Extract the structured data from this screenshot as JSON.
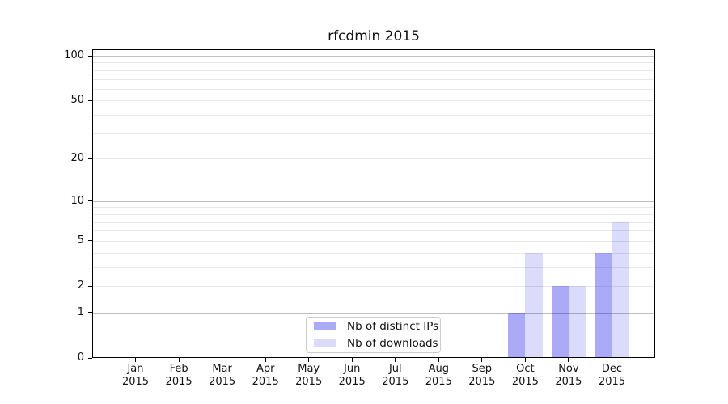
{
  "figure": {
    "background": "#ffffff",
    "text_color": "#111111"
  },
  "chart_data": {
    "type": "bar",
    "title": "rfcdmin 2015",
    "x_categories": [
      "Jan",
      "Feb",
      "Mar",
      "Apr",
      "May",
      "Jun",
      "Jul",
      "Aug",
      "Sep",
      "Oct",
      "Nov",
      "Dec"
    ],
    "x_year": "2015",
    "series": [
      {
        "name": "Nb of distinct IPs",
        "color_hex": "#aaaaf6",
        "overlay_rgba": "rgba(10,10,230,0.345)",
        "values": [
          0,
          0,
          0,
          0,
          0,
          0,
          0,
          0,
          0,
          1,
          2,
          4
        ]
      },
      {
        "name": "Nb of downloads",
        "color_hex": "#dcdcf8",
        "overlay_rgba": "rgba(10,10,230,0.145)",
        "values": [
          0,
          0,
          0,
          0,
          0,
          0,
          0,
          0,
          0,
          4,
          2,
          7
        ]
      }
    ],
    "yaxis": {
      "scale": "log10(value+1)",
      "tick_values": [
        0,
        1,
        2,
        5,
        10,
        20,
        50,
        100
      ],
      "tick_labels": [
        "0",
        "1",
        "2",
        "5",
        "10",
        "20",
        "50",
        "100"
      ],
      "major_gridlines": [
        1,
        10,
        100
      ],
      "minor_gridlines": [
        2,
        3,
        4,
        5,
        6,
        7,
        8,
        9,
        20,
        30,
        40,
        50,
        60,
        70,
        80,
        90
      ],
      "ylim": [
        0,
        112
      ]
    },
    "xaxis": {
      "ylim_note": "12 evenly spaced month ticks",
      "tick_count": 12
    },
    "legend": {
      "position": "lower center",
      "entries": [
        "Nb of distinct IPs",
        "Nb of downloads"
      ]
    },
    "grid": true,
    "gridline_colors": {
      "major": "#bfbfbf",
      "minor": "#e8e8e8"
    }
  }
}
